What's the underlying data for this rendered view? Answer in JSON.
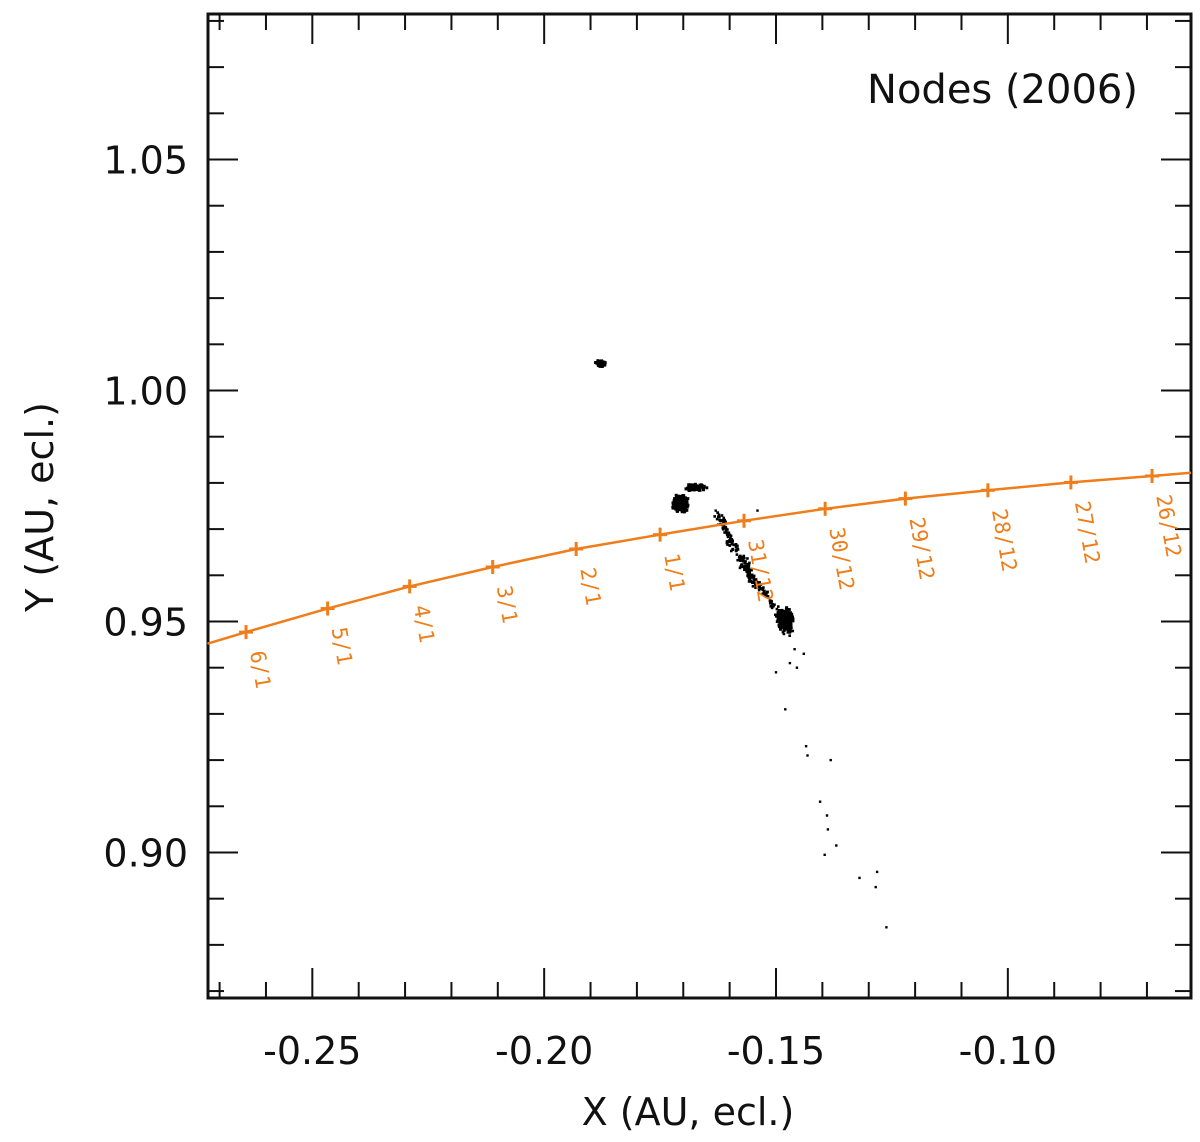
{
  "chart_data": {
    "type": "scatter",
    "title": "Nodes (2006)",
    "xlabel": "X (AU, ecl.)",
    "ylabel": "Y (AU, ecl.)",
    "xlim": [
      -0.2725,
      -0.0605
    ],
    "ylim": [
      0.8685,
      1.0815
    ],
    "xticks": [
      -0.25,
      -0.2,
      -0.15,
      -0.1
    ],
    "xtick_labels": [
      "-0.25",
      "-0.20",
      "-0.15",
      "-0.10"
    ],
    "yticks": [
      0.9,
      0.95,
      1.0,
      1.05
    ],
    "ytick_labels": [
      "0.90",
      "0.95",
      "1.00",
      "1.05"
    ],
    "minor_x_step": 0.01,
    "minor_y_step": 0.01,
    "colors": {
      "earth_orbit": "#ef7d1a",
      "nodes": "#000000",
      "axes": "#111111"
    },
    "earth_orbit": {
      "name": "",
      "x": [
        -0.2726,
        -0.2643,
        -0.2467,
        -0.229,
        -0.2111,
        -0.1931,
        -0.175,
        -0.1569,
        -0.1394,
        -0.1221,
        -0.1043,
        -0.0864,
        -0.0689,
        -0.0605
      ],
      "y": [
        0.9452,
        0.9477,
        0.9528,
        0.9576,
        0.9618,
        0.9657,
        0.9688,
        0.9718,
        0.9744,
        0.9766,
        0.9784,
        0.9801,
        0.9815,
        0.9822
      ],
      "markers": [
        {
          "x": -0.2643,
          "y": 0.9477,
          "label": "6/1"
        },
        {
          "x": -0.2467,
          "y": 0.9528,
          "label": "5/1"
        },
        {
          "x": -0.229,
          "y": 0.9576,
          "label": "4/1"
        },
        {
          "x": -0.2111,
          "y": 0.9618,
          "label": "3/1"
        },
        {
          "x": -0.1931,
          "y": 0.9657,
          "label": "2/1"
        },
        {
          "x": -0.175,
          "y": 0.9688,
          "label": "1/1"
        },
        {
          "x": -0.1569,
          "y": 0.9718,
          "label": "31/12"
        },
        {
          "x": -0.1394,
          "y": 0.9744,
          "label": "30/12"
        },
        {
          "x": -0.1221,
          "y": 0.9766,
          "label": "29/12"
        },
        {
          "x": -0.1043,
          "y": 0.9784,
          "label": "28/12"
        },
        {
          "x": -0.0864,
          "y": 0.9801,
          "label": "27/12"
        },
        {
          "x": -0.0689,
          "y": 0.9815,
          "label": "26/12"
        }
      ]
    },
    "node_clusters": [
      {
        "x": -0.1878,
        "y": 1.0058,
        "sx": 0.0006,
        "sy": 0.0004,
        "n": 80
      },
      {
        "x": -0.1706,
        "y": 0.9755,
        "sx": 0.0009,
        "sy": 0.001,
        "n": 520
      },
      {
        "x": -0.1675,
        "y": 0.979,
        "sx": 0.0014,
        "sy": 0.0005,
        "n": 90
      },
      {
        "x": -0.1478,
        "y": 0.9505,
        "sx": 0.001,
        "sy": 0.0012,
        "n": 240
      }
    ],
    "node_streak": {
      "x": [
        -0.1625,
        -0.159,
        -0.155,
        -0.1515,
        -0.147
      ],
      "y": [
        0.973,
        0.966,
        0.959,
        0.955,
        0.947
      ],
      "n": 260
    },
    "node_points": [
      [
        -0.163,
        0.974
      ],
      [
        -0.154,
        0.974
      ],
      [
        -0.144,
        0.943
      ],
      [
        -0.147,
        0.941
      ],
      [
        -0.15,
        0.939
      ],
      [
        -0.148,
        0.931
      ],
      [
        -0.1435,
        0.923
      ],
      [
        -0.1432,
        0.921
      ],
      [
        -0.1382,
        0.92
      ],
      [
        -0.1405,
        0.911
      ],
      [
        -0.139,
        0.908
      ],
      [
        -0.1388,
        0.905
      ],
      [
        -0.137,
        0.9015
      ],
      [
        -0.1395,
        0.8995
      ],
      [
        -0.132,
        0.8945
      ],
      [
        -0.1282,
        0.8958
      ],
      [
        -0.1285,
        0.8925
      ],
      [
        -0.1262,
        0.8838
      ],
      [
        -0.1455,
        0.94
      ],
      [
        -0.146,
        0.944
      ]
    ]
  }
}
